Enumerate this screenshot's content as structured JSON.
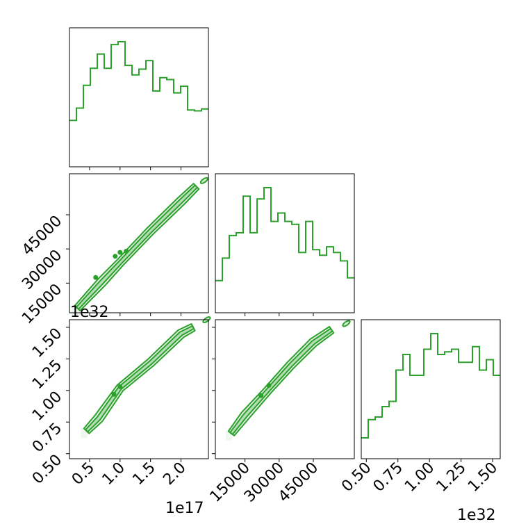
{
  "chart_data": {
    "type": "corner",
    "color": "#2ca02c",
    "variables": [
      {
        "range": [
          0.17,
          2.45
        ],
        "multiplier": "1e17",
        "ticks": [
          0.5,
          1.0,
          1.5,
          2.0
        ]
      },
      {
        "range": [
          2000,
          63000
        ],
        "multiplier": "",
        "ticks": [
          15000,
          30000,
          45000
        ]
      },
      {
        "range": [
          0.46,
          1.56
        ],
        "multiplier": "1e32",
        "ticks": [
          0.5,
          0.75,
          1.0,
          1.25,
          1.5
        ]
      }
    ],
    "tick_labels": {
      "v0": [
        "0.5",
        "1.0",
        "1.5",
        "2.0"
      ],
      "v1": [
        "15000",
        "30000",
        "45000"
      ],
      "v2": [
        "0.50",
        "0.75",
        "1.00",
        "1.25",
        "1.50"
      ]
    },
    "offset_labels": {
      "v0": "1e17",
      "v2": "1e32"
    },
    "histograms": [
      {
        "var": 0,
        "edges_start": 0.17,
        "bin_width": 0.114,
        "counts": [
          27,
          40,
          64,
          82,
          97,
          82,
          107,
          110,
          85,
          75,
          81,
          90,
          58,
          72,
          70,
          56,
          63,
          38,
          37,
          39
        ]
      },
      {
        "var": 1,
        "edges_start": 2000,
        "bin_width": 3050,
        "counts": [
          4,
          12,
          20,
          21,
          34,
          21,
          33,
          37,
          25,
          28,
          25,
          24,
          14,
          25,
          15,
          13,
          16,
          14,
          11,
          5
        ]
      },
      {
        "var": 2,
        "edges_start": 0.46,
        "bin_width": 0.055,
        "counts": [
          0,
          7,
          8,
          12,
          14,
          26,
          32,
          24,
          24,
          34,
          40,
          32,
          33,
          34,
          29,
          29,
          35,
          26,
          30,
          24
        ]
      }
    ],
    "scatter_panels": [
      {
        "x_var": 0,
        "y_var": 1,
        "band": [
          [
            0.3,
            4000
          ],
          [
            0.7,
            15500
          ],
          [
            1.0,
            24000
          ],
          [
            1.5,
            38000
          ],
          [
            2.0,
            51000
          ],
          [
            2.25,
            57500
          ]
        ],
        "blobs": [
          [
            2.38,
            60000
          ]
        ],
        "peak": [
          [
            0.6,
            17500
          ],
          [
            1.0,
            28500
          ],
          [
            0.92,
            26800
          ],
          [
            1.1,
            29000
          ]
        ]
      },
      {
        "x_var": 0,
        "y_var": 2,
        "band": [
          [
            0.45,
            0.68
          ],
          [
            0.65,
            0.78
          ],
          [
            1.0,
            1.02
          ],
          [
            1.5,
            1.22
          ],
          [
            2.0,
            1.45
          ],
          [
            2.2,
            1.5
          ]
        ],
        "blobs": [
          [
            2.42,
            1.56
          ]
        ],
        "peak": [
          [
            0.9,
            0.97
          ],
          [
            1.0,
            1.03
          ]
        ]
      },
      {
        "x_var": 1,
        "y_var": 2,
        "band": [
          [
            9000,
            0.66
          ],
          [
            15000,
            0.8
          ],
          [
            25000,
            1.0
          ],
          [
            35000,
            1.2
          ],
          [
            45000,
            1.38
          ],
          [
            53000,
            1.48
          ]
        ],
        "blobs": [
          [
            59500,
            1.53
          ]
        ],
        "peak": [
          [
            22000,
            0.96
          ],
          [
            25500,
            1.04
          ]
        ]
      }
    ]
  }
}
